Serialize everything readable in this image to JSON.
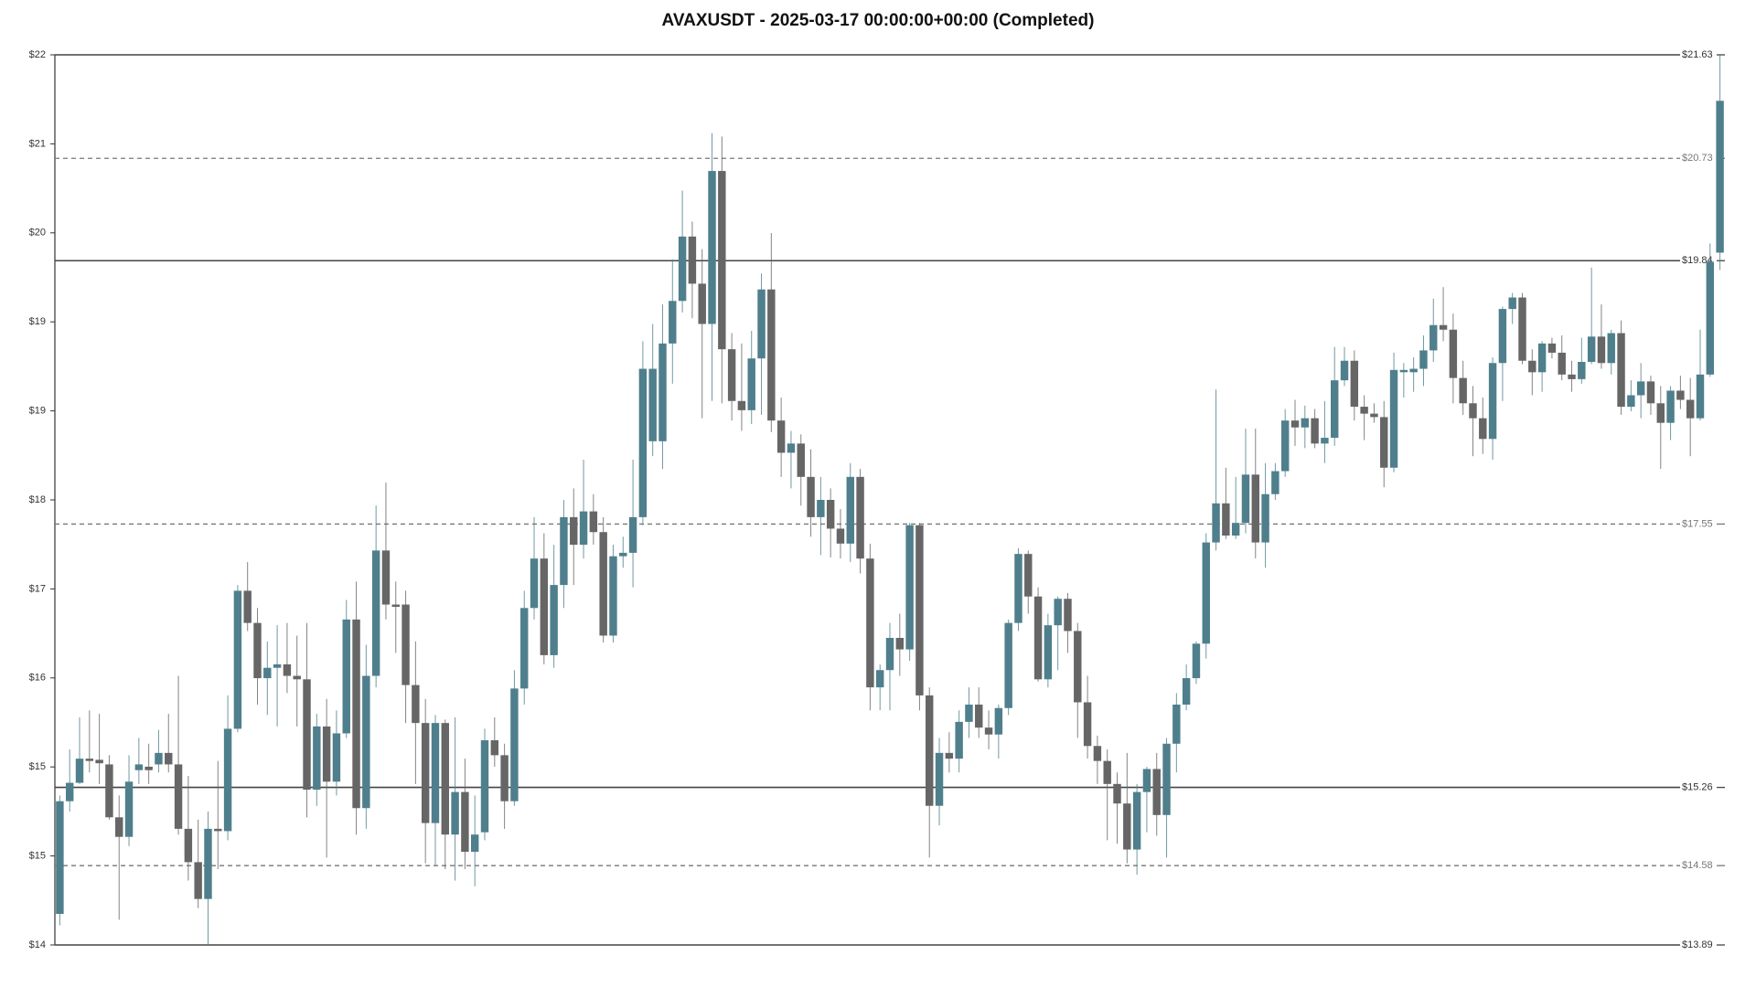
{
  "chart_data": {
    "type": "candlestick",
    "title": "AVAXUSDT - 2025-03-17 00:00:00+00:00 (Completed)",
    "up_color": "#4f7f8c",
    "down_color": "#666666",
    "ylim": [
      13.89,
      21.63
    ],
    "yticks": [
      {
        "value": 13.89,
        "label": "$14"
      },
      {
        "value": 14.664,
        "label": "$15"
      },
      {
        "value": 15.438,
        "label": "$15"
      },
      {
        "value": 16.212,
        "label": "$16"
      },
      {
        "value": 16.986,
        "label": "$17"
      },
      {
        "value": 17.76,
        "label": "$18"
      },
      {
        "value": 18.534,
        "label": "$19"
      },
      {
        "value": 19.308,
        "label": "$19"
      },
      {
        "value": 20.082,
        "label": "$20"
      },
      {
        "value": 20.856,
        "label": "$21"
      },
      {
        "value": 21.63,
        "label": "$22"
      }
    ],
    "levels": [
      {
        "value": 21.63,
        "label": "$21.63",
        "style": "solid"
      },
      {
        "value": 20.73,
        "label": "$20.73",
        "style": "dashed"
      },
      {
        "value": 19.84,
        "label": "$19.84",
        "style": "solid"
      },
      {
        "value": 17.55,
        "label": "$17.55",
        "style": "dashed"
      },
      {
        "value": 15.26,
        "label": "$15.26",
        "style": "solid"
      },
      {
        "value": 14.58,
        "label": "$14.58",
        "style": "dashed"
      },
      {
        "value": 13.89,
        "label": "$13.89",
        "style": "solid"
      }
    ],
    "open": [
      14.16,
      15.14,
      15.3,
      15.51,
      15.5,
      15.46,
      15.0,
      14.83,
      15.41,
      15.44,
      15.46,
      15.56,
      15.46,
      14.9,
      14.61,
      14.29,
      14.9,
      14.88,
      15.77,
      16.97,
      16.69,
      16.21,
      16.3,
      16.33,
      16.23,
      16.2,
      15.24,
      15.79,
      15.31,
      15.73,
      16.72,
      15.08,
      16.23,
      17.32,
      16.85,
      16.85,
      16.15,
      15.82,
      14.95,
      15.82,
      14.85,
      15.22,
      14.7,
      14.87,
      15.67,
      15.54,
      15.14,
      16.12,
      16.82,
      17.25,
      16.41,
      17.02,
      17.61,
      17.37,
      17.66,
      17.48,
      16.58,
      17.27,
      17.3,
      17.61,
      18.27,
      18.27,
      19.12,
      19.49,
      20.05,
      19.64,
      19.29,
      20.62,
      19.07,
      18.62,
      18.54,
      18.99,
      19.59,
      18.45,
      18.17,
      18.25,
      17.96,
      17.61,
      17.76,
      17.51,
      17.38,
      17.96,
      17.25,
      16.13,
      16.28,
      16.56,
      16.46,
      17.54,
      16.06,
      15.1,
      15.56,
      15.51,
      15.83,
      15.98,
      15.78,
      15.72,
      15.95,
      16.69,
      17.29,
      16.92,
      16.2,
      16.67,
      16.9,
      16.62,
      16.0,
      15.62,
      15.49,
      15.29,
      15.12,
      14.72,
      15.22,
      15.42,
      15.02,
      15.64,
      15.98,
      16.21,
      16.51,
      17.39,
      17.73,
      17.45,
      17.56,
      17.98,
      17.39,
      17.81,
      18.01,
      18.45,
      18.39,
      18.47,
      18.25,
      18.3,
      18.8,
      18.97,
      18.57,
      18.51,
      18.48,
      18.04,
      18.87,
      18.87,
      18.9,
      19.06,
      19.28,
      19.24,
      18.82,
      18.6,
      18.47,
      18.29,
      18.95,
      19.42,
      19.52,
      18.97,
      18.87,
      19.12,
      19.04,
      18.85,
      18.81,
      18.96,
      19.18,
      18.95,
      19.21,
      18.57,
      18.67,
      18.79,
      18.6,
      18.43,
      18.71,
      18.63,
      18.47,
      18.85,
      19.91
    ],
    "high": [
      15.19,
      15.59,
      15.87,
      15.93,
      15.9,
      15.54,
      15.19,
      15.54,
      15.69,
      15.64,
      15.76,
      15.9,
      16.23,
      15.36,
      14.98,
      15.05,
      15.49,
      16.06,
      17.02,
      17.22,
      16.82,
      16.53,
      16.67,
      16.69,
      16.58,
      16.69,
      15.9,
      16.03,
      15.93,
      16.89,
      17.05,
      16.5,
      17.71,
      17.91,
      17.05,
      16.97,
      16.53,
      16.03,
      15.89,
      15.85,
      15.87,
      15.51,
      15.19,
      15.77,
      15.87,
      15.64,
      16.28,
      16.97,
      17.61,
      17.47,
      17.37,
      17.76,
      17.86,
      18.11,
      17.81,
      17.61,
      17.37,
      17.44,
      18.11,
      19.14,
      19.29,
      19.46,
      19.85,
      20.45,
      20.18,
      19.94,
      20.95,
      20.92,
      19.21,
      19.12,
      19.23,
      19.73,
      20.08,
      18.65,
      18.36,
      18.33,
      18.2,
      17.96,
      17.86,
      17.68,
      18.08,
      18.03,
      17.38,
      16.33,
      16.69,
      16.77,
      17.56,
      17.56,
      16.13,
      15.69,
      15.74,
      15.93,
      16.13,
      16.13,
      15.93,
      15.98,
      16.72,
      17.34,
      17.32,
      17.0,
      16.77,
      16.92,
      16.95,
      16.69,
      16.23,
      15.71,
      15.59,
      15.39,
      15.56,
      15.29,
      15.44,
      15.56,
      15.69,
      16.08,
      16.33,
      16.53,
      17.47,
      18.72,
      18.04,
      17.96,
      18.38,
      18.38,
      18.08,
      18.08,
      18.55,
      18.63,
      18.58,
      18.55,
      18.62,
      19.09,
      19.09,
      19.06,
      18.67,
      18.6,
      18.62,
      19.04,
      18.95,
      19.0,
      19.19,
      19.51,
      19.61,
      19.38,
      18.97,
      18.75,
      18.65,
      19.0,
      19.44,
      19.56,
      19.56,
      19.07,
      19.14,
      19.17,
      19.19,
      18.97,
      19.17,
      19.78,
      19.46,
      19.24,
      19.32,
      18.8,
      18.95,
      18.84,
      18.75,
      18.75,
      18.84,
      18.82,
      19.24,
      19.99,
      21.63
    ],
    "low": [
      14.06,
      15.05,
      15.29,
      15.39,
      15.29,
      14.98,
      14.11,
      14.75,
      15.29,
      15.29,
      15.39,
      15.39,
      14.85,
      14.45,
      14.21,
      13.89,
      14.55,
      14.8,
      15.74,
      16.62,
      15.98,
      15.89,
      15.79,
      16.08,
      15.79,
      15.0,
      15.1,
      14.65,
      15.19,
      15.69,
      14.85,
      14.9,
      16.13,
      16.72,
      16.43,
      15.82,
      15.29,
      14.6,
      14.58,
      14.55,
      14.45,
      14.55,
      14.4,
      14.8,
      15.44,
      14.9,
      15.1,
      15.98,
      16.72,
      16.33,
      16.3,
      16.82,
      17.02,
      17.25,
      17.37,
      16.52,
      16.52,
      17.17,
      17.0,
      17.54,
      18.14,
      18.03,
      18.77,
      19.39,
      19.34,
      18.47,
      18.62,
      18.6,
      18.45,
      18.36,
      18.42,
      18.5,
      18.35,
      17.96,
      17.86,
      17.71,
      17.44,
      17.28,
      17.26,
      17.25,
      17.22,
      17.12,
      15.93,
      15.93,
      15.93,
      16.23,
      16.36,
      15.93,
      14.65,
      14.93,
      15.39,
      15.39,
      15.69,
      15.69,
      15.59,
      15.51,
      15.89,
      16.62,
      16.77,
      16.18,
      16.13,
      16.28,
      16.43,
      15.69,
      15.51,
      15.29,
      14.8,
      14.77,
      14.6,
      14.5,
      14.87,
      14.84,
      14.65,
      15.39,
      15.93,
      16.16,
      16.38,
      17.32,
      17.42,
      17.42,
      17.47,
      17.25,
      17.17,
      17.76,
      17.96,
      18.23,
      18.21,
      18.21,
      18.08,
      18.23,
      18.75,
      18.45,
      18.28,
      18.43,
      17.87,
      18.0,
      18.65,
      18.7,
      18.75,
      18.96,
      19.14,
      18.6,
      18.5,
      18.14,
      18.16,
      18.11,
      18.62,
      19.29,
      18.94,
      18.67,
      18.7,
      18.99,
      18.8,
      18.7,
      18.77,
      18.94,
      18.9,
      18.85,
      18.5,
      18.53,
      18.47,
      18.5,
      18.03,
      18.28,
      18.55,
      18.14,
      18.45,
      18.83,
      19.76
    ],
    "close": [
      15.14,
      15.3,
      15.51,
      15.49,
      15.47,
      15.0,
      14.83,
      15.31,
      15.46,
      15.41,
      15.56,
      15.46,
      14.9,
      14.61,
      14.29,
      14.9,
      14.88,
      15.77,
      16.97,
      16.69,
      16.21,
      16.3,
      16.33,
      16.23,
      16.2,
      15.24,
      15.79,
      15.31,
      15.73,
      16.72,
      15.08,
      16.23,
      17.32,
      16.85,
      16.83,
      16.15,
      15.82,
      14.95,
      15.82,
      14.85,
      15.22,
      14.7,
      14.85,
      15.67,
      15.54,
      15.14,
      16.12,
      16.82,
      17.25,
      16.41,
      17.02,
      17.61,
      17.37,
      17.66,
      17.48,
      16.58,
      17.27,
      17.3,
      17.61,
      18.9,
      18.9,
      19.12,
      19.49,
      20.05,
      19.64,
      19.29,
      20.62,
      19.07,
      18.62,
      18.54,
      18.99,
      19.59,
      18.45,
      18.17,
      18.25,
      17.96,
      17.61,
      17.76,
      17.51,
      17.38,
      17.96,
      17.25,
      16.13,
      16.28,
      16.56,
      16.46,
      17.54,
      16.06,
      15.1,
      15.56,
      15.51,
      15.83,
      15.98,
      15.78,
      15.72,
      15.95,
      16.69,
      17.29,
      16.92,
      16.2,
      16.67,
      16.9,
      16.62,
      16.0,
      15.62,
      15.49,
      15.29,
      15.12,
      14.72,
      15.22,
      15.42,
      15.02,
      15.64,
      15.98,
      16.21,
      16.51,
      17.39,
      17.73,
      17.45,
      17.56,
      17.98,
      17.39,
      17.81,
      18.01,
      18.45,
      18.39,
      18.47,
      18.25,
      18.3,
      18.8,
      18.97,
      18.57,
      18.51,
      18.48,
      18.04,
      18.89,
      18.89,
      18.9,
      19.06,
      19.28,
      19.24,
      18.82,
      18.6,
      18.47,
      18.29,
      18.95,
      19.42,
      19.52,
      18.97,
      18.87,
      19.12,
      19.04,
      18.85,
      18.81,
      18.96,
      19.18,
      18.95,
      19.21,
      18.57,
      18.67,
      18.79,
      18.6,
      18.43,
      18.71,
      18.63,
      18.47,
      18.85,
      19.83,
      21.23
    ]
  }
}
